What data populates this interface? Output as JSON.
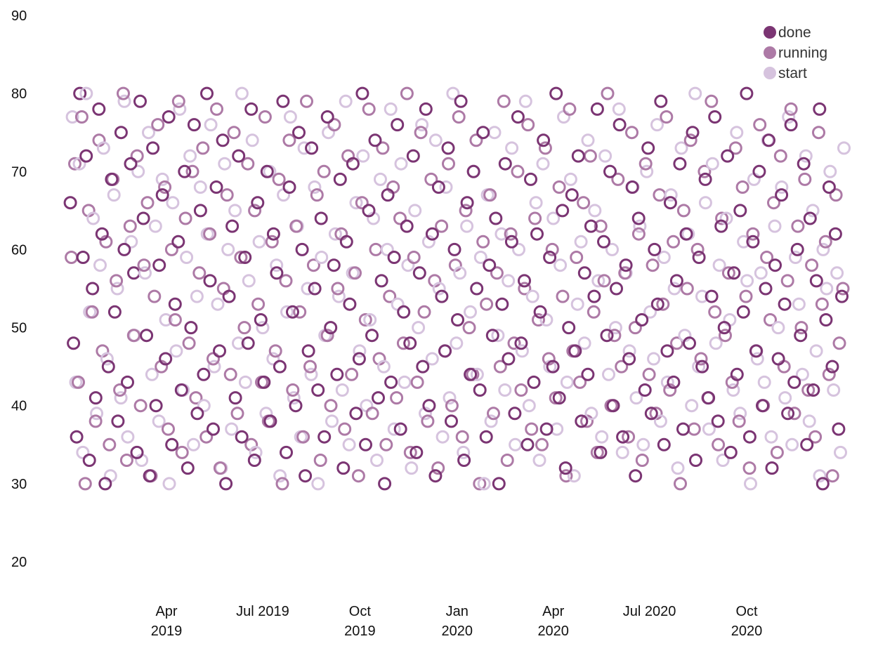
{
  "chart_data": {
    "type": "scatter",
    "title": "",
    "xlabel": "",
    "ylabel": "",
    "x_range": [
      "2019-01-01",
      "2020-12-31"
    ],
    "ylim": [
      20,
      90
    ],
    "grid": false,
    "legend_placement": "top-right",
    "marker": "hollow-circle",
    "y_ticks": [
      "20",
      "30",
      "40",
      "50",
      "60",
      "70",
      "80",
      "90"
    ],
    "x_ticks": [
      {
        "date": "2019-04-01",
        "line1": "Apr",
        "line2": "2019"
      },
      {
        "date": "2019-07-01",
        "line1": "Jul 2019",
        "line2": ""
      },
      {
        "date": "2019-10-01",
        "line1": "Oct",
        "line2": "2019"
      },
      {
        "date": "2020-01-01",
        "line1": "Jan",
        "line2": "2020"
      },
      {
        "date": "2020-04-01",
        "line1": "Apr",
        "line2": "2020"
      },
      {
        "date": "2020-07-01",
        "line1": "Jul 2020",
        "line2": ""
      },
      {
        "date": "2020-10-01",
        "line1": "Oct",
        "line2": "2020"
      }
    ],
    "series": [
      {
        "name": "done",
        "color": "#7b3573",
        "values": [
          66,
          48,
          36,
          80,
          59,
          72,
          33,
          55,
          41,
          78,
          62,
          30,
          45,
          69,
          52,
          38,
          75,
          60,
          43,
          71,
          57,
          34,
          79,
          64,
          49,
          31,
          73,
          40,
          58,
          67,
          46,
          77,
          35,
          53,
          61,
          42,
          70,
          32,
          50,
          76,
          39,
          65,
          44,
          80,
          56,
          37,
          68,
          47,
          74,
          30,
          54,
          63,
          41,
          72,
          36,
          59,
          48,
          78,
          33,
          66,
          51,
          43,
          70,
          38,
          62,
          57,
          45,
          79,
          34,
          68,
          52,
          40,
          75,
          60,
          31,
          47,
          73,
          55,
          42,
          64,
          36,
          77,
          50,
          58,
          44,
          69,
          32,
          61,
          53,
          71,
          39,
          46,
          80,
          35,
          65,
          49,
          74,
          41,
          56,
          30,
          67,
          43,
          59,
          76,
          37,
          52,
          63,
          48,
          72,
          34,
          57,
          45,
          78,
          40,
          62,
          31,
          68,
          54,
          47,
          73,
          38,
          60,
          51,
          79,
          33,
          66,
          44,
          70,
          55,
          42,
          75,
          36,
          58,
          49,
          64,
          30,
          53,
          71,
          46,
          61,
          39,
          77,
          48,
          56,
          35,
          69,
          43,
          62,
          52,
          74,
          37,
          59,
          45,
          80,
          41,
          65,
          32,
          50,
          67,
          47,
          72,
          38,
          57,
          44,
          63,
          54,
          78,
          34,
          61,
          49,
          70,
          40,
          55,
          76,
          36,
          58,
          46,
          68,
          31,
          64,
          51,
          42,
          73,
          39,
          60,
          53,
          79,
          35,
          47,
          66,
          43,
          56,
          71,
          37,
          62,
          48,
          75,
          33,
          59,
          45,
          69,
          41,
          54,
          77,
          38,
          63,
          50,
          72,
          34,
          57,
          44,
          65,
          52,
          80,
          36,
          61,
          47,
          70,
          40,
          55,
          74,
          32,
          58,
          46,
          67,
          53,
          39,
          76,
          43,
          60,
          49,
          71,
          35,
          64,
          42,
          56,
          78,
          30,
          51,
          68,
          45,
          62,
          37,
          54
        ]
      },
      {
        "name": "running",
        "color": "#ad7aa6",
        "values": [
          59,
          71,
          43,
          77,
          30,
          65,
          52,
          38,
          74,
          47,
          61,
          35,
          69,
          56,
          42,
          80,
          33,
          63,
          49,
          72,
          40,
          58,
          66,
          31,
          54,
          76,
          45,
          68,
          37,
          60,
          51,
          79,
          34,
          64,
          48,
          70,
          41,
          57,
          73,
          36,
          62,
          46,
          78,
          32,
          55,
          67,
          44,
          75,
          39,
          59,
          50,
          71,
          35,
          65,
          53,
          43,
          77,
          38,
          61,
          47,
          69,
          30,
          56,
          74,
          42,
          63,
          52,
          36,
          79,
          45,
          58,
          67,
          33,
          70,
          49,
          40,
          76,
          55,
          62,
          37,
          72,
          44,
          57,
          31,
          66,
          51,
          78,
          39,
          60,
          46,
          73,
          35,
          54,
          68,
          41,
          64,
          48,
          80,
          34,
          59,
          43,
          75,
          52,
          38,
          69,
          56,
          32,
          63,
          47,
          71,
          40,
          58,
          77,
          36,
          65,
          50,
          44,
          74,
          30,
          61,
          53,
          67,
          39,
          57,
          45,
          79,
          33,
          62,
          48,
          70,
          42,
          55,
          76,
          37,
          64,
          51,
          35,
          73,
          46,
          60,
          41,
          68,
          54,
          31,
          78,
          47,
          59,
          43,
          66,
          38,
          72,
          52,
          34,
          63,
          56,
          80,
          40,
          49,
          69,
          45,
          57,
          36,
          75,
          50,
          62,
          33,
          71,
          44,
          58,
          39,
          67,
          53,
          77,
          42,
          61,
          48,
          30,
          65,
          55,
          74,
          37,
          60,
          46,
          70,
          41,
          79,
          52,
          35,
          64,
          49,
          57,
          43,
          73,
          38,
          68,
          54,
          32,
          62,
          47,
          76,
          40,
          59,
          51,
          66,
          34,
          72,
          45,
          56,
          78,
          39,
          63,
          50,
          69,
          42,
          58,
          36,
          75,
          53,
          61,
          44,
          31,
          67,
          48,
          55
        ]
      },
      {
        "name": "start",
        "color": "#d6c3de",
        "values": [
          77,
          43,
          71,
          34,
          80,
          52,
          64,
          39,
          58,
          73,
          46,
          31,
          67,
          55,
          41,
          79,
          36,
          61,
          49,
          70,
          33,
          57,
          75,
          44,
          63,
          38,
          69,
          51,
          30,
          66,
          47,
          78,
          42,
          59,
          72,
          35,
          54,
          68,
          40,
          62,
          76,
          45,
          53,
          32,
          71,
          60,
          37,
          65,
          48,
          80,
          43,
          56,
          74,
          34,
          61,
          50,
          39,
          70,
          46,
          58,
          31,
          67,
          52,
          77,
          41,
          63,
          36,
          73,
          55,
          44,
          68,
          30,
          59,
          49,
          75,
          38,
          62,
          54,
          42,
          79,
          35,
          57,
          66,
          47,
          72,
          40,
          51,
          64,
          33,
          69,
          45,
          60,
          78,
          37,
          53,
          71,
          43,
          58,
          32,
          65,
          50,
          76,
          39,
          61,
          46,
          74,
          55,
          36,
          68,
          41,
          80,
          48,
          57,
          34,
          63,
          52,
          70,
          44,
          59,
          30,
          67,
          38,
          75,
          49,
          62,
          42,
          56,
          73,
          35,
          60,
          47,
          79,
          40,
          54,
          66,
          33,
          71,
          51,
          45,
          64,
          37,
          58,
          77,
          43,
          69,
          31,
          53,
          61,
          48,
          74,
          39,
          65,
          56,
          36,
          72,
          44,
          60,
          50,
          78,
          34,
          57,
          47,
          68,
          41,
          63,
          35,
          70,
          52,
          46,
          76,
          38,
          59,
          43,
          67,
          55,
          32,
          73,
          49,
          62,
          40,
          80,
          45,
          54,
          66,
          37,
          71,
          48,
          58,
          33,
          64,
          51,
          42,
          75,
          39,
          61,
          56,
          30,
          69,
          46,
          57,
          43,
          74,
          36,
          63,
          50,
          68,
          41,
          77,
          35,
          59,
          53,
          44,
          72,
          38,
          65,
          47,
          31,
          60,
          55,
          70,
          42,
          57,
          34,
          73
        ]
      }
    ]
  }
}
